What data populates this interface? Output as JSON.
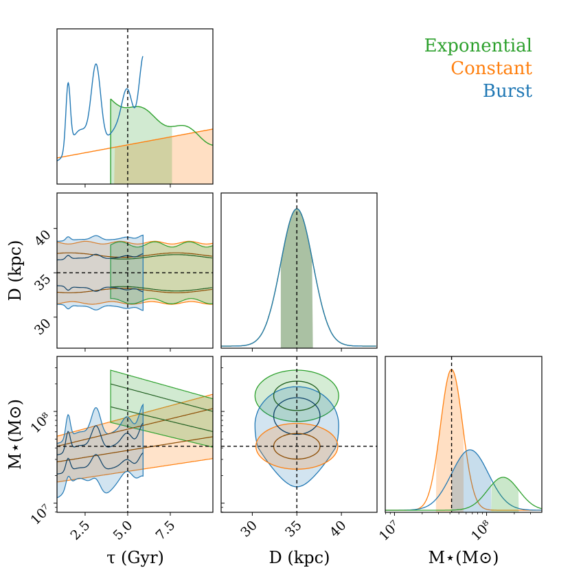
{
  "chart_data": {
    "type": "corner",
    "parameters": [
      {
        "key": "tau",
        "label": "τ (Gyr)",
        "range": [
          0.85,
          10.0
        ],
        "ticks": [
          2.5,
          5.0,
          7.5
        ],
        "tick_labels": [
          "2.5",
          "5.0",
          "7.5"
        ],
        "truth": 5.0
      },
      {
        "key": "D",
        "label": "D (kpc)",
        "range": [
          26.5,
          44.0
        ],
        "ticks": [
          30,
          35,
          40
        ],
        "tick_labels": [
          "30",
          "35",
          "40"
        ],
        "truth": 35.0
      },
      {
        "key": "logM",
        "label": "M⋆(M⊙)",
        "range": [
          6.9,
          8.6
        ],
        "ticks": [
          7.0,
          8.0
        ],
        "tick_labels": [
          "10⁷",
          "10⁸"
        ],
        "truth": 7.62
      }
    ],
    "series": [
      {
        "name": "Exponential",
        "color": "#2ca02c",
        "dark": "#1f5e1f",
        "tau_support": [
          4.0,
          10.0
        ],
        "D_mean": 35.0,
        "D_sigma": 1.8,
        "logM_mean": 8.18,
        "logM_sigma": 0.17
      },
      {
        "name": "Constant",
        "color": "#ff7f0e",
        "dark": "#8a4a00",
        "tau_support": [
          0.85,
          10.0
        ],
        "D_mean": 35.0,
        "D_sigma": 1.8,
        "logM_mean": 7.62,
        "logM_sigma": 0.12
      },
      {
        "name": "Burst",
        "color": "#1f77b4",
        "dark": "#0b3f66",
        "tau_support": [
          0.85,
          5.9
        ],
        "D_mean": 35.0,
        "D_sigma": 1.8,
        "logM_mean": 7.82,
        "logM_sigma": 0.2
      }
    ],
    "legend": [
      "Exponential",
      "Constant",
      "Burst"
    ],
    "legend_position": "top-right"
  }
}
